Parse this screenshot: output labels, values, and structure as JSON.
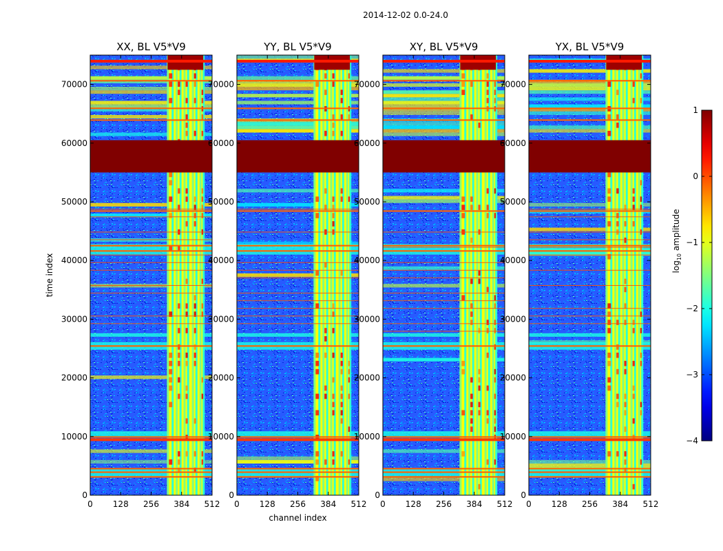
{
  "figure": {
    "suptitle": "2014-12-02 0.0-24.0"
  },
  "chart_data": [
    {
      "type": "heatmap",
      "title": "XX, BL V5*V9",
      "xlabel": "",
      "ylabel": "time index",
      "xlim": [
        0,
        512
      ],
      "ylim": [
        0,
        75000
      ],
      "xticks": [
        0,
        128,
        256,
        384,
        512
      ],
      "yticks": [
        0,
        10000,
        20000,
        30000,
        40000,
        50000,
        60000,
        70000
      ],
      "ytick_labels": [
        "0",
        "10000",
        "20000",
        "30000",
        "40000",
        "50000",
        "60000",
        "70000"
      ],
      "value_scale": "log10",
      "colormap": "jet",
      "saturated_time_range": [
        55000,
        60500
      ],
      "high_amplitude_channel_range": [
        325,
        475
      ],
      "strong_rfi_time_rows": [
        3000,
        3800,
        4400,
        9800,
        25300,
        41500,
        42400,
        48300,
        63800,
        65800,
        70500,
        73800
      ]
    },
    {
      "type": "heatmap",
      "title": "YY, BL V5*V9",
      "xlabel": "channel index",
      "ylabel": "",
      "xlim": [
        0,
        512
      ],
      "ylim": [
        0,
        75000
      ],
      "xticks": [
        0,
        128,
        256,
        384,
        512
      ],
      "yticks": [
        0,
        10000,
        20000,
        30000,
        40000,
        50000,
        60000,
        70000
      ],
      "ytick_labels": [
        "0",
        "10000",
        "20000",
        "30000",
        "40000",
        "50000",
        "60000",
        "70000"
      ],
      "value_scale": "log10",
      "colormap": "jet",
      "saturated_time_range": [
        55000,
        60500
      ],
      "high_amplitude_channel_range": [
        325,
        475
      ],
      "strong_rfi_time_rows": [
        3000,
        3800,
        4400,
        9800,
        25300,
        41500,
        42400,
        48300,
        63800,
        65800,
        70500,
        73800
      ]
    },
    {
      "type": "heatmap",
      "title": "XY, BL V5*V9",
      "xlabel": "",
      "ylabel": "",
      "xlim": [
        0,
        512
      ],
      "ylim": [
        0,
        75000
      ],
      "xticks": [
        0,
        128,
        256,
        384,
        512
      ],
      "yticks": [
        0,
        10000,
        20000,
        30000,
        40000,
        50000,
        60000,
        70000
      ],
      "ytick_labels": [
        "0",
        "10000",
        "20000",
        "30000",
        "40000",
        "50000",
        "60000",
        "70000"
      ],
      "value_scale": "log10",
      "colormap": "jet",
      "saturated_time_range": [
        55000,
        60500
      ],
      "high_amplitude_channel_range": [
        325,
        475
      ],
      "strong_rfi_time_rows": [
        3000,
        3800,
        4400,
        9800,
        25300,
        41500,
        42400,
        48300,
        63800,
        65800,
        70500,
        73800
      ]
    },
    {
      "type": "heatmap",
      "title": "YX, BL V5*V9",
      "xlabel": "",
      "ylabel": "",
      "xlim": [
        0,
        512
      ],
      "ylim": [
        0,
        75000
      ],
      "xticks": [
        0,
        128,
        256,
        384,
        512
      ],
      "yticks": [
        0,
        10000,
        20000,
        30000,
        40000,
        50000,
        60000,
        70000
      ],
      "ytick_labels": [
        "0",
        "10000",
        "20000",
        "30000",
        "40000",
        "50000",
        "60000",
        "70000"
      ],
      "value_scale": "log10",
      "colormap": "jet",
      "saturated_time_range": [
        55000,
        60500
      ],
      "high_amplitude_channel_range": [
        325,
        475
      ],
      "strong_rfi_time_rows": [
        3000,
        3800,
        4400,
        9800,
        25300,
        41500,
        42400,
        48300,
        63800,
        65800,
        70500,
        73800
      ]
    }
  ],
  "colorbar": {
    "label_base": "log",
    "label_sub": "10",
    "label_rest": " amplitude",
    "range": [
      -4,
      1
    ],
    "ticks": [
      1,
      0,
      -1,
      -2,
      -3,
      -4
    ],
    "tick_labels": [
      "1",
      "0",
      "−1",
      "−2",
      "−3",
      "−4"
    ],
    "colormap": "jet"
  }
}
